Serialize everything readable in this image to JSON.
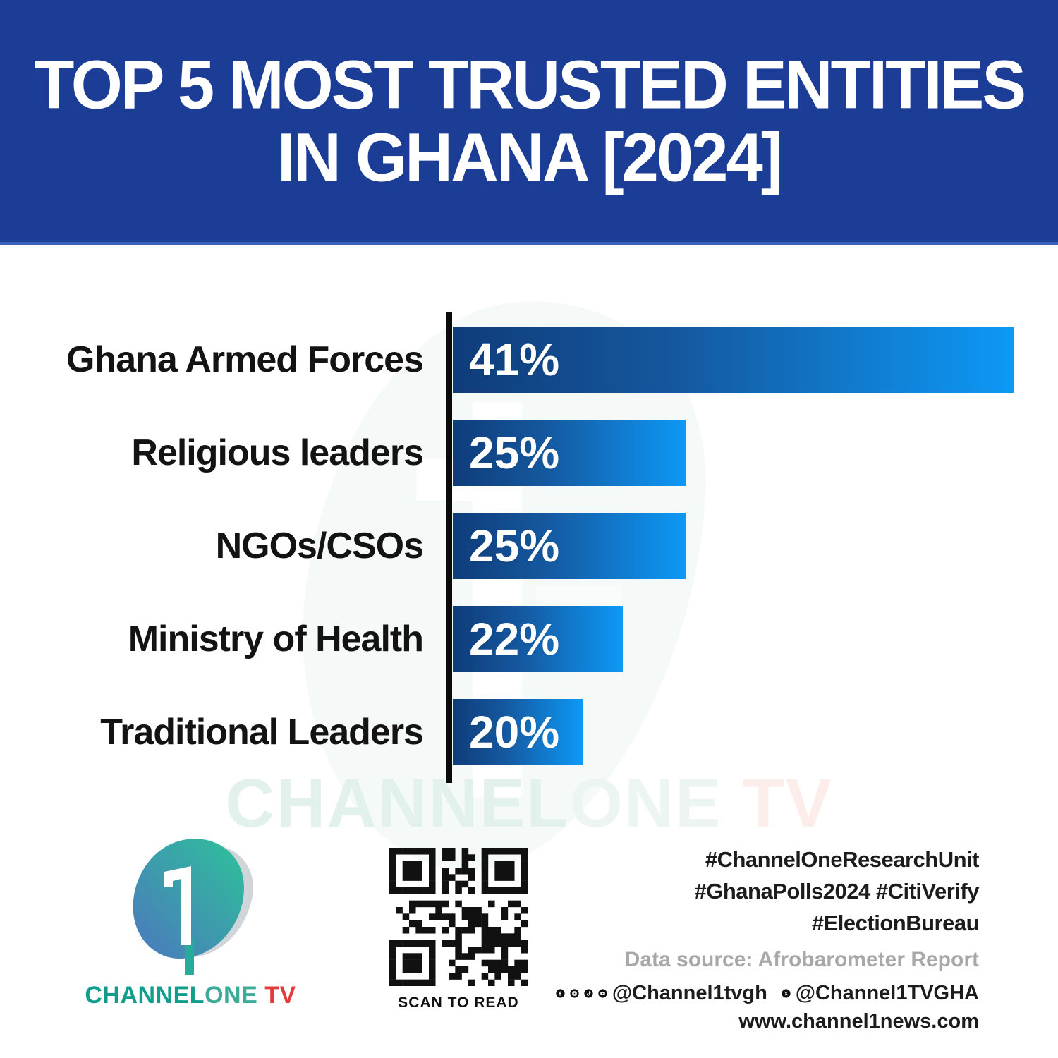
{
  "header": {
    "title_line1": "TOP 5 MOST TRUSTED ENTITIES",
    "title_line2": "IN GHANA [2024]",
    "bg_color": "#1c3d96"
  },
  "chart_data": {
    "type": "bar",
    "orientation": "horizontal",
    "title": "Top 5 Most Trusted Entities in Ghana [2024]",
    "categories": [
      "Ghana Armed Forces",
      "Religious leaders",
      "NGOs/CSOs",
      "Ministry of Health",
      "Traditional Leaders"
    ],
    "values": [
      41,
      25,
      25,
      22,
      20
    ],
    "value_labels": [
      "41%",
      "25%",
      "25%",
      "22%",
      "20%"
    ],
    "unit": "%",
    "bar_display_pct": [
      100,
      41.5,
      41.5,
      30.3,
      23.2
    ],
    "bar_gradient_start": "#0f3c7a",
    "bar_gradient_end": "#0d99f6",
    "axis_color": "#0b0b0b",
    "grid": false,
    "legend": false
  },
  "watermark": {
    "part1": "CHANNEL",
    "part2": "ONE",
    "part3": " TV"
  },
  "footer": {
    "logo": {
      "numeral": "1",
      "brand_part1": "CHANNEL",
      "brand_part2": "ONE",
      "brand_part3": " TV",
      "teal": "#0f9e8c",
      "red": "#e23b3b"
    },
    "qr_caption": "SCAN TO READ",
    "hashtags": [
      "#ChannelOneResearchUnit",
      "#GhanaPolls2024 #CitiVerify",
      "#ElectionBureau"
    ],
    "data_source": "Data source: Afrobarometer Report",
    "social": {
      "icons": [
        "facebook-icon",
        "instagram-icon",
        "tiktok-icon",
        "youtube-icon"
      ],
      "handle1": "@Channel1tvgh",
      "x_icon": "x-icon",
      "handle2": "@Channel1TVGHA"
    },
    "website": "www.channel1news.com"
  }
}
